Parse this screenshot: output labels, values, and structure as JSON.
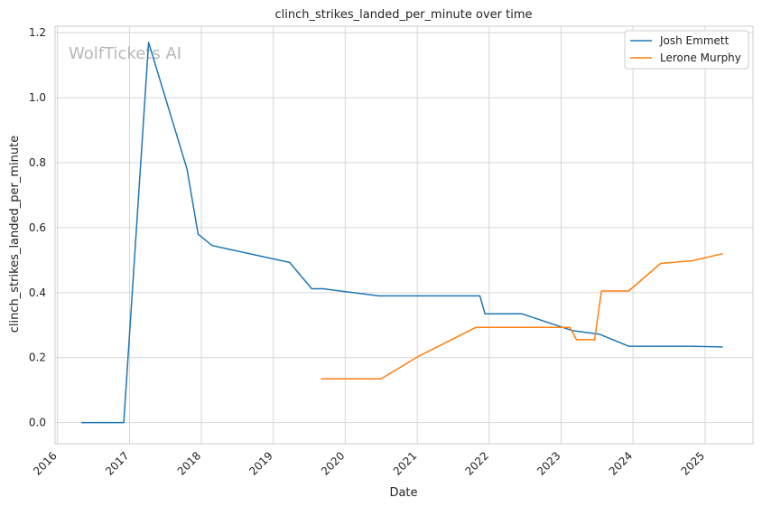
{
  "watermark": "WolfTickets AI",
  "chart_data": {
    "type": "line",
    "title": "clinch_strikes_landed_per_minute over time",
    "xlabel": "Date",
    "ylabel": "clinch_strikes_landed_per_minute",
    "xlim": [
      "2015-12-20",
      "2025-09-01"
    ],
    "ylim": [
      -0.065,
      1.22
    ],
    "x_ticks": [
      "2016",
      "2017",
      "2018",
      "2019",
      "2020",
      "2021",
      "2022",
      "2023",
      "2024",
      "2025"
    ],
    "y_ticks": [
      "0.0",
      "0.2",
      "0.4",
      "0.6",
      "0.8",
      "1.0",
      "1.2"
    ],
    "grid": true,
    "legend_position": "top-right",
    "series": [
      {
        "name": "Josh Emmett",
        "color": "#1f77b4",
        "points": [
          [
            "2016-05-01",
            0.0
          ],
          [
            "2016-12-03",
            0.0
          ],
          [
            "2017-04-08",
            1.17
          ],
          [
            "2017-10-20",
            0.78
          ],
          [
            "2017-12-15",
            0.58
          ],
          [
            "2018-02-24",
            0.545
          ],
          [
            "2019-03-25",
            0.493
          ],
          [
            "2019-07-15",
            0.412
          ],
          [
            "2019-09-10",
            0.412
          ],
          [
            "2020-06-20",
            0.39
          ],
          [
            "2021-11-15",
            0.39
          ],
          [
            "2021-12-10",
            0.335
          ],
          [
            "2022-06-15",
            0.335
          ],
          [
            "2023-03-01",
            0.283
          ],
          [
            "2023-07-15",
            0.272
          ],
          [
            "2023-12-10",
            0.235
          ],
          [
            "2024-10-10",
            0.235
          ],
          [
            "2025-04-01",
            0.233
          ]
        ]
      },
      {
        "name": "Lerone Murphy",
        "color": "#ff7f0e",
        "points": [
          [
            "2019-08-31",
            0.135
          ],
          [
            "2020-07-01",
            0.135
          ],
          [
            "2021-01-10",
            0.205
          ],
          [
            "2021-10-25",
            0.293
          ],
          [
            "2023-02-15",
            0.293
          ],
          [
            "2023-03-20",
            0.255
          ],
          [
            "2023-06-20",
            0.255
          ],
          [
            "2023-07-25",
            0.405
          ],
          [
            "2023-12-10",
            0.405
          ],
          [
            "2024-05-20",
            0.49
          ],
          [
            "2024-10-25",
            0.498
          ],
          [
            "2025-04-01",
            0.52
          ]
        ]
      }
    ]
  }
}
